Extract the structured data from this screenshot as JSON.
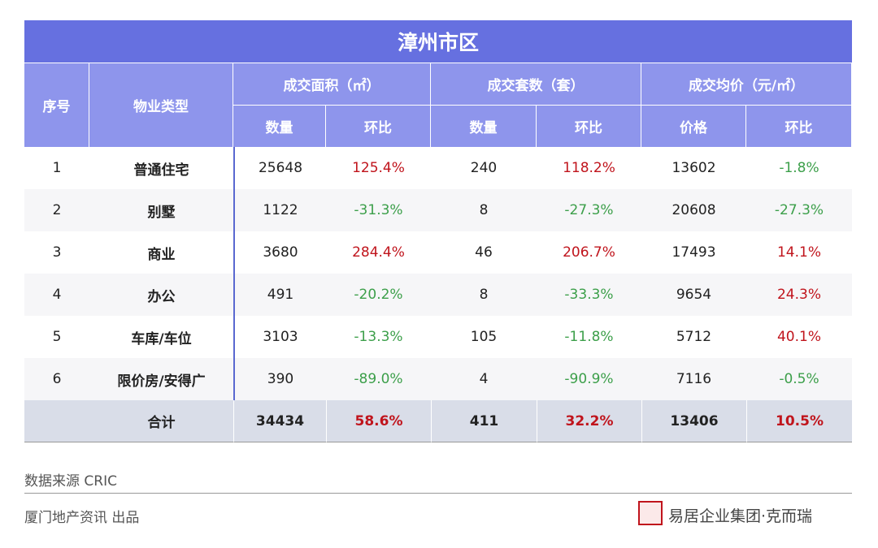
{
  "title": "漳州市区",
  "header": {
    "groups": [
      "序号",
      "物业类型",
      "成交面积（㎡）",
      "成交套数（套）",
      "成交均价（元/㎡）"
    ],
    "subheaders": [
      "数量",
      "环比",
      "数量",
      "环比",
      "价格",
      "环比"
    ]
  },
  "rows": [
    [
      "1",
      "普通住宅",
      "25648",
      "125.4%",
      "240",
      "118.2%",
      "13602",
      "-1.8%"
    ],
    [
      "2",
      "别墅",
      "1122",
      "-31.3%",
      "8",
      "-27.3%",
      "20608",
      "-27.3%"
    ],
    [
      "3",
      "商业",
      "3680",
      "284.4%",
      "46",
      "206.7%",
      "17493",
      "14.1%"
    ],
    [
      "4",
      "办公",
      "491",
      "-20.2%",
      "8",
      "-33.3%",
      "9654",
      "24.3%"
    ],
    [
      "5",
      "车库/车位",
      "3103",
      "-13.3%",
      "105",
      "-11.8%",
      "5712",
      "40.1%"
    ],
    [
      "6",
      "限价房/安得广",
      "390",
      "-89.0%",
      "4",
      "-90.9%",
      "7116",
      "-0.5%"
    ]
  ],
  "total": [
    "合计",
    "34434",
    "58.6%",
    "411",
    "32.2%",
    "13406",
    "10.5%"
  ],
  "source": "数据来源  CRIC",
  "credit": "厦门地产资讯  出品",
  "brand": "易居企业集团·克而瑞"
}
